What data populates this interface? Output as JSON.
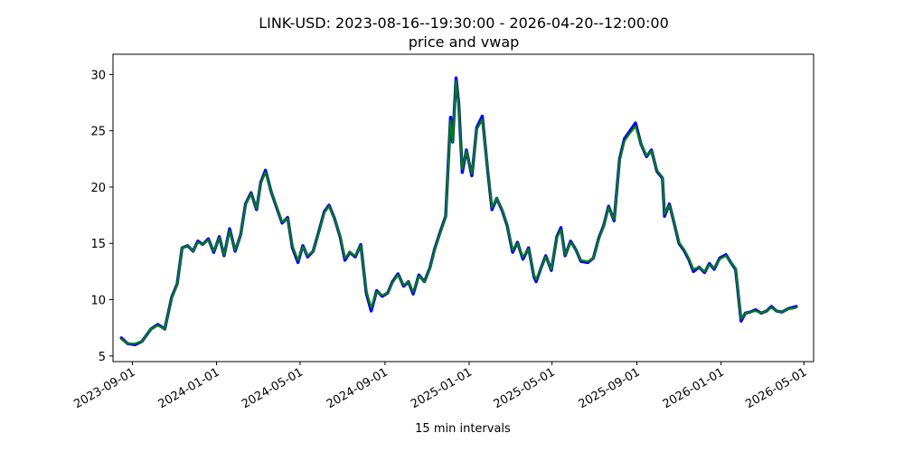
{
  "chart_data": {
    "type": "line",
    "title": "LINK-USD: 2023-08-16--19:30:00 - 2026-04-20--12:00:00",
    "subtitle": "price and vwap",
    "xlabel": "15 min intervals",
    "ylabel": "",
    "xlim": [
      "2023-08-04",
      "2026-05-15"
    ],
    "ylim": [
      4.5,
      31.8
    ],
    "y_ticks": [
      5,
      10,
      15,
      20,
      25,
      30
    ],
    "x_ticks": [
      "2023-09-01",
      "2024-01-01",
      "2024-05-01",
      "2024-09-01",
      "2025-01-01",
      "2025-05-01",
      "2025-09-01",
      "2026-01-01",
      "2026-05-01"
    ],
    "grid": false,
    "colors": {
      "price": "#0000ff",
      "vwap": "#008000"
    },
    "series": [
      {
        "key": "price",
        "x": [
          "2023-08-16",
          "2023-08-25",
          "2023-09-05",
          "2023-09-15",
          "2023-09-28",
          "2023-10-08",
          "2023-10-18",
          "2023-10-28",
          "2023-11-05",
          "2023-11-12",
          "2023-11-20",
          "2023-11-28",
          "2023-12-05",
          "2023-12-12",
          "2023-12-20",
          "2023-12-28",
          "2024-01-05",
          "2024-01-12",
          "2024-01-20",
          "2024-01-28",
          "2024-02-05",
          "2024-02-12",
          "2024-02-20",
          "2024-02-28",
          "2024-03-05",
          "2024-03-12",
          "2024-03-20",
          "2024-03-28",
          "2024-04-05",
          "2024-04-13",
          "2024-04-20",
          "2024-04-28",
          "2024-05-05",
          "2024-05-12",
          "2024-05-20",
          "2024-05-28",
          "2024-06-05",
          "2024-06-12",
          "2024-06-20",
          "2024-06-28",
          "2024-07-05",
          "2024-07-12",
          "2024-07-20",
          "2024-07-28",
          "2024-08-05",
          "2024-08-12",
          "2024-08-20",
          "2024-08-28",
          "2024-09-05",
          "2024-09-12",
          "2024-09-20",
          "2024-09-28",
          "2024-10-05",
          "2024-10-12",
          "2024-10-20",
          "2024-10-28",
          "2024-11-05",
          "2024-11-12",
          "2024-11-20",
          "2024-11-28",
          "2024-12-05",
          "2024-12-08",
          "2024-12-13",
          "2024-12-17",
          "2024-12-22",
          "2024-12-28",
          "2025-01-05",
          "2025-01-12",
          "2025-01-20",
          "2025-01-28",
          "2025-02-03",
          "2025-02-10",
          "2025-02-18",
          "2025-02-25",
          "2025-03-05",
          "2025-03-12",
          "2025-03-20",
          "2025-03-28",
          "2025-04-05",
          "2025-04-08",
          "2025-04-15",
          "2025-04-22",
          "2025-04-30",
          "2025-05-08",
          "2025-05-14",
          "2025-05-20",
          "2025-05-28",
          "2025-06-05",
          "2025-06-12",
          "2025-06-22",
          "2025-06-30",
          "2025-07-08",
          "2025-07-15",
          "2025-07-22",
          "2025-07-30",
          "2025-08-07",
          "2025-08-14",
          "2025-08-22",
          "2025-08-30",
          "2025-09-07",
          "2025-09-15",
          "2025-09-22",
          "2025-09-30",
          "2025-10-08",
          "2025-10-11",
          "2025-10-18",
          "2025-10-25",
          "2025-11-01",
          "2025-11-08",
          "2025-11-15",
          "2025-11-22",
          "2025-11-30",
          "2025-12-08",
          "2025-12-15",
          "2025-12-22",
          "2025-12-30",
          "2026-01-08",
          "2026-01-15",
          "2026-01-22",
          "2026-01-30",
          "2026-02-05",
          "2026-02-12",
          "2026-02-20",
          "2026-02-28",
          "2026-03-08",
          "2026-03-15",
          "2026-03-22",
          "2026-03-30",
          "2026-04-08",
          "2026-04-14",
          "2026-04-20"
        ],
        "values": [
          6.6,
          6.1,
          6.0,
          6.3,
          7.4,
          7.8,
          7.4,
          10.2,
          11.4,
          14.6,
          14.8,
          14.3,
          15.2,
          14.9,
          15.4,
          14.2,
          15.6,
          13.9,
          16.3,
          14.3,
          15.8,
          18.5,
          19.5,
          18.0,
          20.4,
          21.5,
          19.6,
          18.2,
          16.8,
          17.3,
          14.6,
          13.3,
          14.8,
          13.8,
          14.3,
          16.0,
          17.8,
          18.4,
          17.2,
          15.6,
          13.5,
          14.2,
          13.8,
          14.9,
          10.6,
          9.0,
          10.8,
          10.3,
          10.6,
          11.6,
          12.3,
          11.2,
          11.6,
          10.5,
          12.2,
          11.6,
          12.8,
          14.5,
          16.0,
          17.4,
          26.2,
          24.0,
          29.7,
          27.4,
          21.3,
          23.3,
          21.0,
          25.3,
          26.3,
          21.4,
          18.0,
          19.0,
          17.9,
          16.6,
          14.2,
          15.1,
          13.6,
          14.6,
          12.0,
          11.6,
          12.8,
          13.9,
          12.6,
          15.6,
          16.4,
          13.9,
          15.2,
          14.4,
          13.4,
          13.3,
          13.7,
          15.5,
          16.6,
          18.3,
          17.0,
          22.5,
          24.3,
          25.0,
          25.7,
          23.8,
          22.7,
          23.3,
          21.4,
          20.8,
          17.4,
          18.5,
          16.8,
          15.0,
          14.4,
          13.6,
          12.5,
          12.9,
          12.4,
          13.2,
          12.7,
          13.7,
          14.0,
          13.3,
          12.7,
          8.1,
          8.8,
          8.9,
          9.1,
          8.8,
          9.0,
          9.4,
          9.0,
          8.9,
          9.2,
          9.3,
          9.4
        ]
      },
      {
        "key": "vwap",
        "x": [
          "2023-08-16",
          "2023-08-25",
          "2023-09-05",
          "2023-09-15",
          "2023-09-28",
          "2023-10-08",
          "2023-10-18",
          "2023-10-28",
          "2023-11-05",
          "2023-11-12",
          "2023-11-20",
          "2023-11-28",
          "2023-12-05",
          "2023-12-12",
          "2023-12-20",
          "2023-12-28",
          "2024-01-05",
          "2024-01-12",
          "2024-01-20",
          "2024-01-28",
          "2024-02-05",
          "2024-02-12",
          "2024-02-20",
          "2024-02-28",
          "2024-03-05",
          "2024-03-12",
          "2024-03-20",
          "2024-03-28",
          "2024-04-05",
          "2024-04-13",
          "2024-04-20",
          "2024-04-28",
          "2024-05-05",
          "2024-05-12",
          "2024-05-20",
          "2024-05-28",
          "2024-06-05",
          "2024-06-12",
          "2024-06-20",
          "2024-06-28",
          "2024-07-05",
          "2024-07-12",
          "2024-07-20",
          "2024-07-28",
          "2024-08-05",
          "2024-08-12",
          "2024-08-20",
          "2024-08-28",
          "2024-09-05",
          "2024-09-12",
          "2024-09-20",
          "2024-09-28",
          "2024-10-05",
          "2024-10-12",
          "2024-10-20",
          "2024-10-28",
          "2024-11-05",
          "2024-11-12",
          "2024-11-20",
          "2024-11-28",
          "2024-12-05",
          "2024-12-08",
          "2024-12-13",
          "2024-12-17",
          "2024-12-22",
          "2024-12-28",
          "2025-01-05",
          "2025-01-12",
          "2025-01-20",
          "2025-01-28",
          "2025-02-03",
          "2025-02-10",
          "2025-02-18",
          "2025-02-25",
          "2025-03-05",
          "2025-03-12",
          "2025-03-20",
          "2025-03-28",
          "2025-04-05",
          "2025-04-08",
          "2025-04-15",
          "2025-04-22",
          "2025-04-30",
          "2025-05-08",
          "2025-05-14",
          "2025-05-20",
          "2025-05-28",
          "2025-06-05",
          "2025-06-12",
          "2025-06-22",
          "2025-06-30",
          "2025-07-08",
          "2025-07-15",
          "2025-07-22",
          "2025-07-30",
          "2025-08-07",
          "2025-08-14",
          "2025-08-22",
          "2025-08-30",
          "2025-09-07",
          "2025-09-15",
          "2025-09-22",
          "2025-09-30",
          "2025-10-08",
          "2025-10-11",
          "2025-10-18",
          "2025-10-25",
          "2025-11-01",
          "2025-11-08",
          "2025-11-15",
          "2025-11-22",
          "2025-11-30",
          "2025-12-08",
          "2025-12-15",
          "2025-12-22",
          "2025-12-30",
          "2026-01-08",
          "2026-01-15",
          "2026-01-22",
          "2026-01-30",
          "2026-02-05",
          "2026-02-12",
          "2026-02-20",
          "2026-02-28",
          "2026-03-08",
          "2026-03-15",
          "2026-03-22",
          "2026-03-30",
          "2026-04-08",
          "2026-04-14",
          "2026-04-20"
        ],
        "values": [
          6.5,
          6.1,
          6.1,
          6.3,
          7.4,
          7.7,
          7.4,
          10.1,
          11.3,
          14.6,
          14.8,
          14.3,
          15.1,
          14.9,
          15.3,
          14.3,
          15.5,
          14.0,
          16.1,
          14.4,
          15.8,
          18.4,
          19.4,
          18.1,
          20.3,
          21.3,
          19.6,
          18.3,
          16.9,
          17.2,
          14.8,
          13.5,
          14.7,
          13.9,
          14.3,
          15.9,
          17.7,
          18.3,
          17.2,
          15.7,
          13.7,
          14.2,
          13.9,
          14.8,
          10.8,
          9.3,
          10.7,
          10.4,
          10.6,
          11.5,
          12.2,
          11.3,
          11.6,
          10.7,
          12.1,
          11.6,
          12.7,
          14.4,
          15.9,
          17.3,
          25.9,
          24.0,
          29.4,
          27.2,
          21.6,
          23.2,
          21.2,
          25.1,
          26.0,
          21.6,
          18.2,
          19.0,
          18.0,
          16.7,
          14.4,
          15.0,
          13.8,
          14.5,
          12.2,
          11.8,
          12.8,
          13.8,
          12.7,
          15.5,
          16.2,
          14.0,
          15.1,
          14.4,
          13.5,
          13.4,
          13.7,
          15.4,
          16.5,
          18.2,
          17.1,
          22.3,
          24.1,
          24.8,
          25.4,
          23.8,
          22.8,
          23.2,
          21.5,
          20.9,
          17.6,
          18.4,
          16.9,
          15.1,
          14.5,
          13.7,
          12.7,
          12.9,
          12.5,
          13.1,
          12.8,
          13.6,
          13.9,
          13.3,
          12.8,
          8.3,
          8.8,
          8.9,
          9.0,
          8.8,
          9.0,
          9.3,
          9.0,
          8.9,
          9.2,
          9.2,
          9.3
        ]
      }
    ]
  }
}
